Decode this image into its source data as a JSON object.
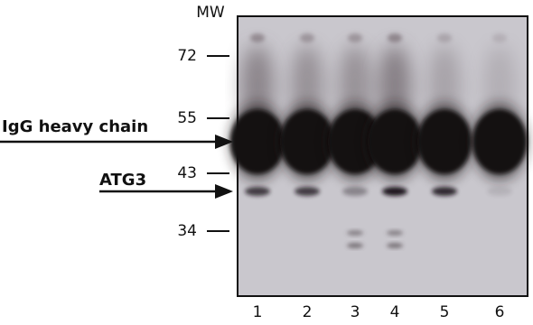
{
  "mw_label": "MW",
  "mw_markers": [
    72,
    55,
    43,
    34
  ],
  "arrows": {
    "heavy_chain": "IgG heavy chain",
    "target": "ATG3"
  },
  "lanes": [
    1,
    2,
    3,
    4,
    5,
    6
  ]
}
